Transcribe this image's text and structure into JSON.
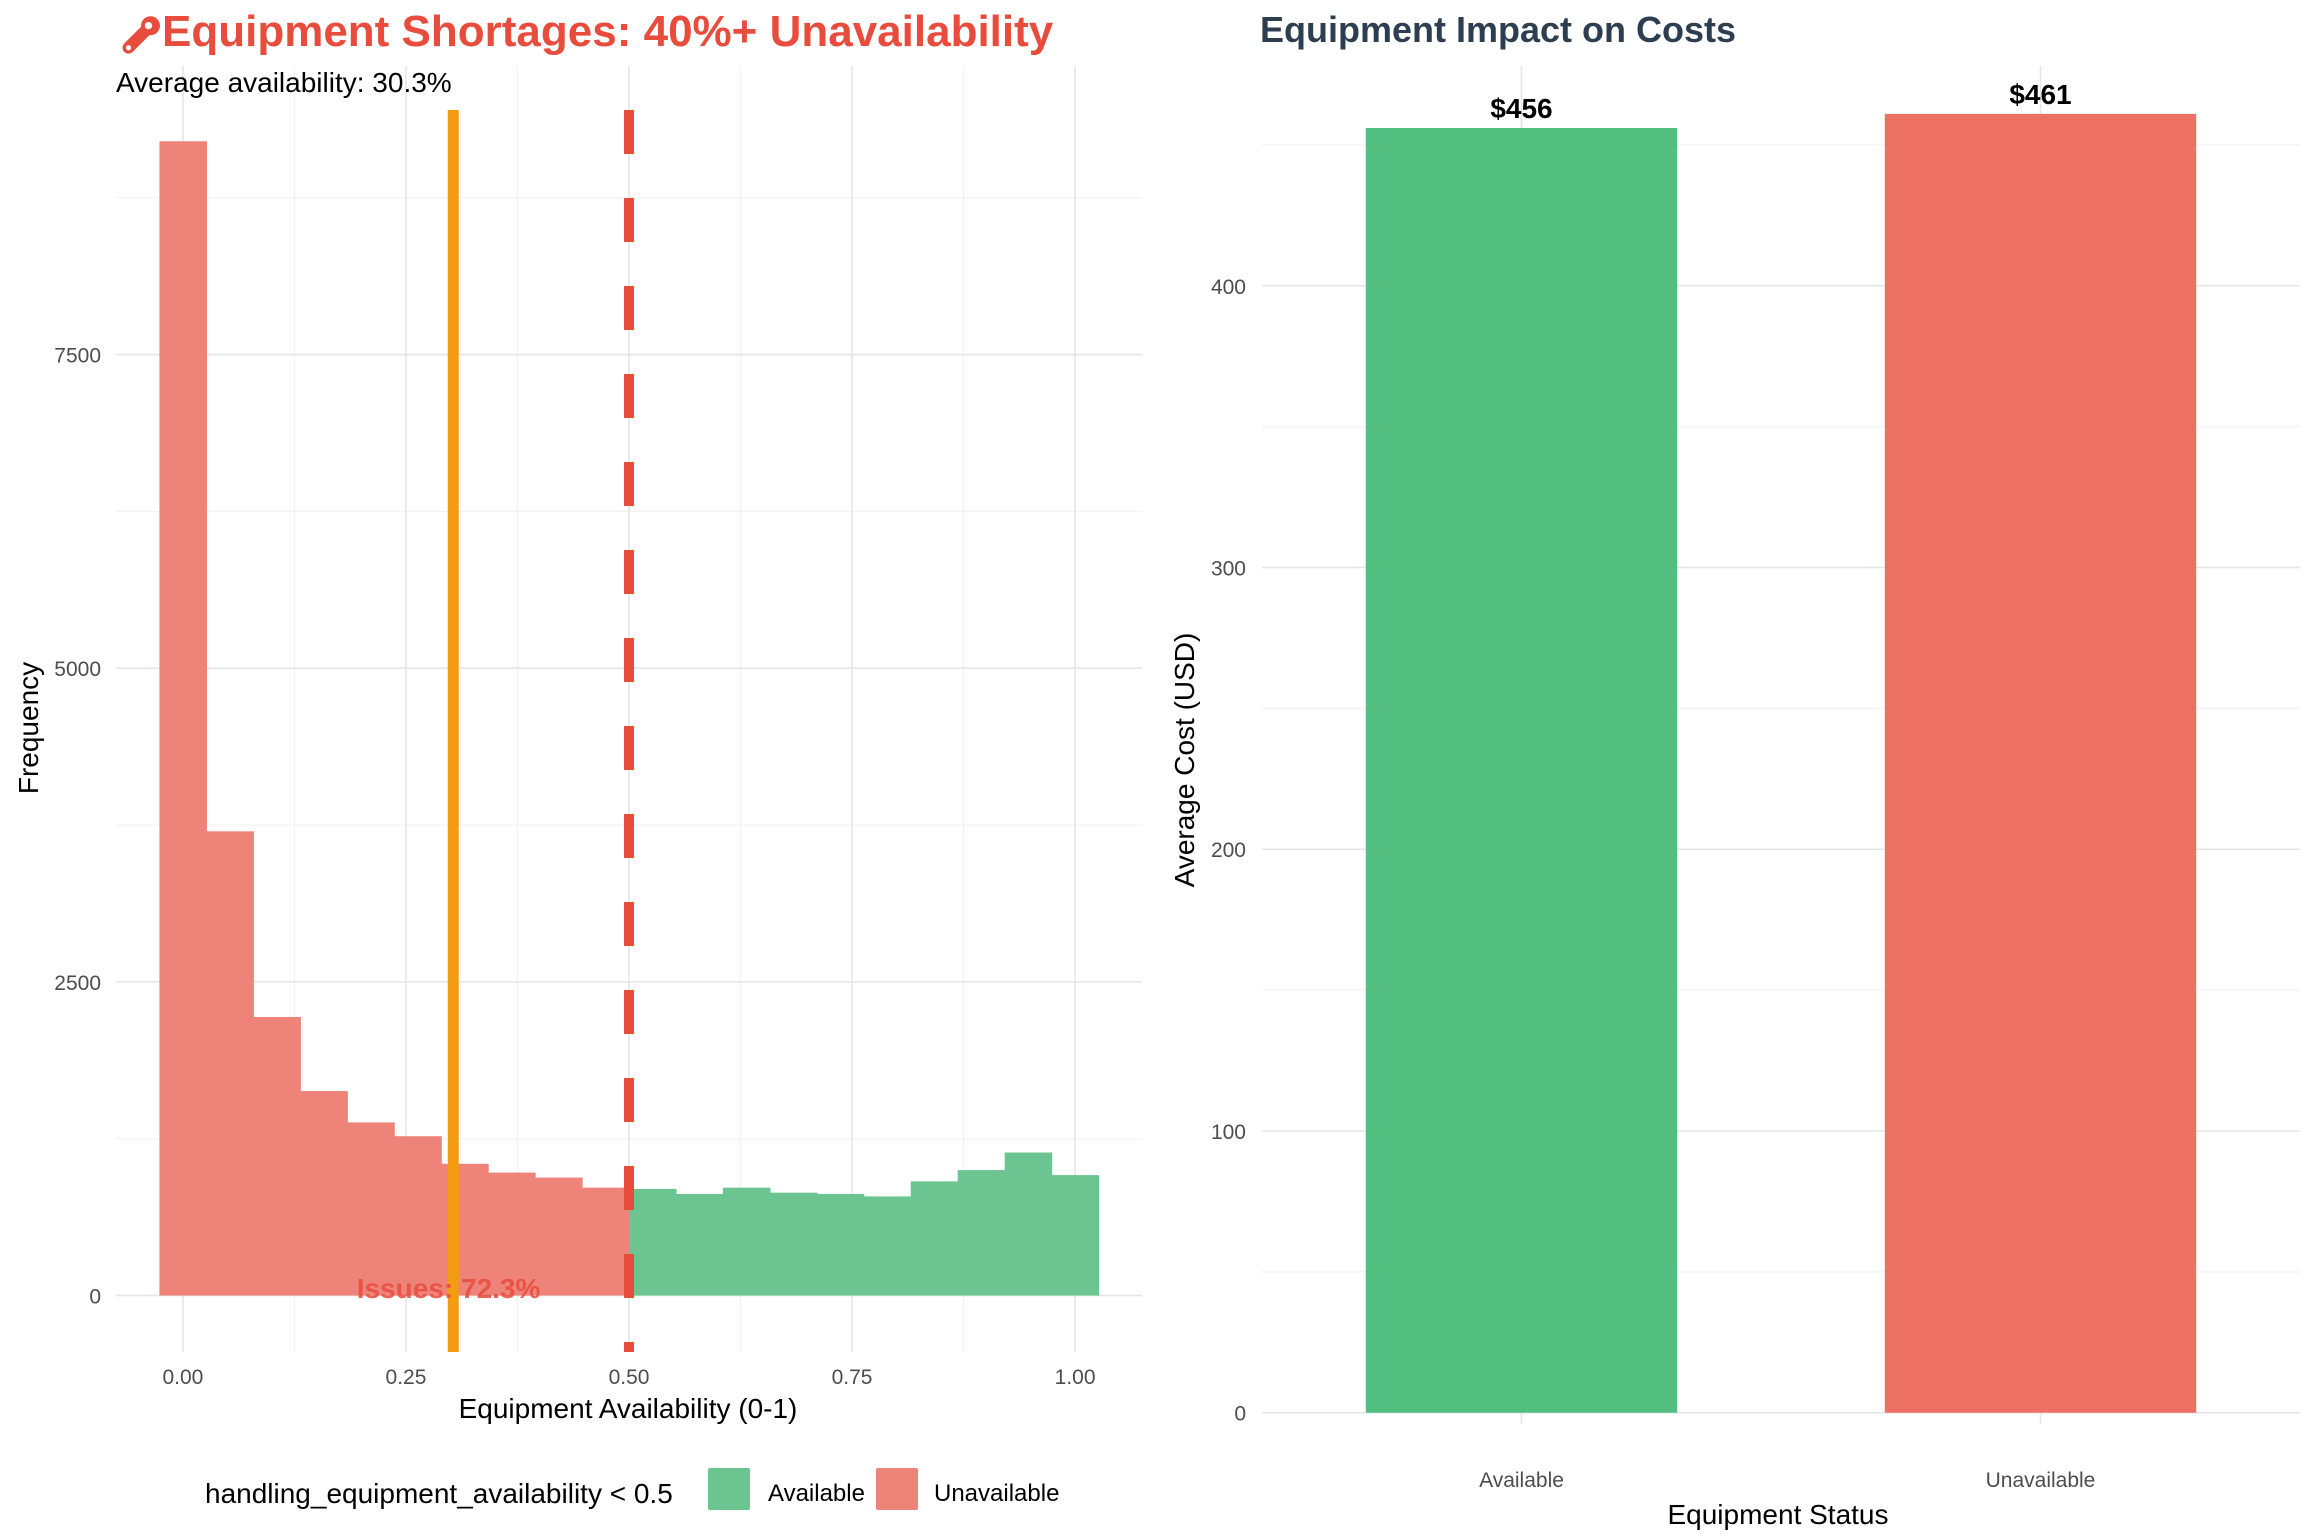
{
  "chart_data": [
    {
      "type": "bar",
      "title": "Equipment Shortages: 40%+ Unavailability",
      "title_icon": "wrench-icon",
      "subtitle": "Average availability: 30.3%",
      "xlabel": "Equipment Availability (0-1)",
      "ylabel": "Frequency",
      "xlim": [
        -0.075,
        1.075
      ],
      "ylim": [
        -450,
        9800
      ],
      "x_ticks": [
        0,
        0.25,
        0.5,
        0.75,
        1
      ],
      "x_tick_labels": [
        "0.00",
        "0.25",
        "0.50",
        "0.75",
        "1.00"
      ],
      "y_ticks": [
        0,
        2500,
        5000,
        7500
      ],
      "y_tick_labels": [
        "0",
        "2500",
        "5000",
        "7500"
      ],
      "bin_width": 0.0526,
      "bins": [
        {
          "x": 0.0,
          "count": 9200,
          "group": "Unavailable"
        },
        {
          "x": 0.0526,
          "count": 3700,
          "group": "Unavailable"
        },
        {
          "x": 0.1053,
          "count": 2220,
          "group": "Unavailable"
        },
        {
          "x": 0.1579,
          "count": 1630,
          "group": "Unavailable"
        },
        {
          "x": 0.2105,
          "count": 1380,
          "group": "Unavailable"
        },
        {
          "x": 0.2632,
          "count": 1270,
          "group": "Unavailable"
        },
        {
          "x": 0.3158,
          "count": 1050,
          "group": "Unavailable"
        },
        {
          "x": 0.3684,
          "count": 980,
          "group": "Unavailable"
        },
        {
          "x": 0.4211,
          "count": 940,
          "group": "Unavailable"
        },
        {
          "x": 0.4737,
          "count": 860,
          "group": "Unavailable"
        },
        {
          "x": 0.5263,
          "count": 850,
          "group": "Available"
        },
        {
          "x": 0.5789,
          "count": 810,
          "group": "Available"
        },
        {
          "x": 0.6316,
          "count": 860,
          "group": "Available"
        },
        {
          "x": 0.6842,
          "count": 820,
          "group": "Available"
        },
        {
          "x": 0.7368,
          "count": 810,
          "group": "Available"
        },
        {
          "x": 0.7895,
          "count": 790,
          "group": "Available"
        },
        {
          "x": 0.8421,
          "count": 910,
          "group": "Available"
        },
        {
          "x": 0.8947,
          "count": 1000,
          "group": "Available"
        },
        {
          "x": 0.9474,
          "count": 1140,
          "group": "Available"
        },
        {
          "x": 1.0,
          "count": 960,
          "group": "Available"
        }
      ],
      "vlines": [
        {
          "x": 0.303,
          "style": "solid",
          "color": "#F39C12"
        },
        {
          "x": 0.5,
          "style": "dashed",
          "color": "#E74C3C"
        }
      ],
      "annotation": {
        "text": "Issues: 72.3%",
        "x": 0.3,
        "y": 60,
        "color": "#E74C3C"
      },
      "legend": {
        "title": "handling_equipment_availability < 0.5",
        "position": "bottom",
        "items": [
          {
            "label": "Available",
            "color": "#6CC591"
          },
          {
            "label": "Unavailable",
            "color": "#EE837A"
          }
        ]
      },
      "grid": true
    },
    {
      "type": "bar",
      "title": "Equipment Impact on Costs",
      "xlabel": "Equipment Status",
      "ylabel": "Average Cost (USD)",
      "categories": [
        "Available",
        "Unavailable"
      ],
      "values": [
        456,
        461
      ],
      "value_labels": [
        "$456",
        "$461"
      ],
      "colors": [
        "#52BE80",
        "#EC7063"
      ],
      "ylim": [
        -4,
        478
      ],
      "y_ticks": [
        0,
        100,
        200,
        300,
        400
      ],
      "y_tick_labels": [
        "0",
        "100",
        "200",
        "300",
        "400"
      ],
      "grid": true
    }
  ]
}
